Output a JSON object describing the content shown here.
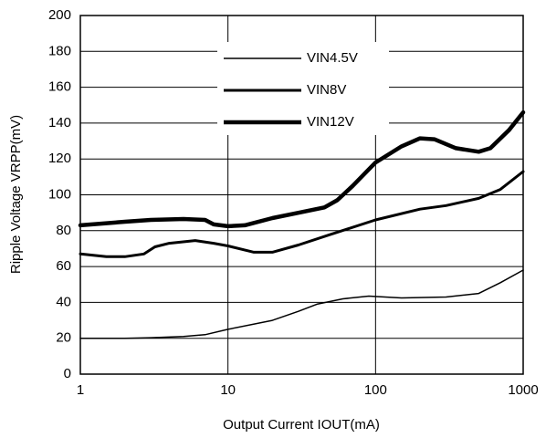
{
  "chart_data": {
    "type": "line",
    "xlabel": "Output Current IOUT(mA)",
    "ylabel": "Ripple Voltage VRPP(mV)",
    "xscale": "log",
    "xlim": [
      1,
      1000
    ],
    "xticks": [
      1,
      10,
      100,
      1000
    ],
    "ylim": [
      0,
      200
    ],
    "yticks": [
      0,
      20,
      40,
      60,
      80,
      100,
      120,
      140,
      160,
      180,
      200
    ],
    "grid": true,
    "legend": "upper center",
    "series": [
      {
        "name": "VIN4.5V",
        "color": "#000000",
        "linewidth": 1.5,
        "x": [
          1,
          2,
          3,
          5,
          7,
          10,
          20,
          30,
          40,
          60,
          90,
          150,
          300,
          500,
          700,
          1000
        ],
        "values": [
          20,
          20,
          20.3,
          21,
          22,
          25,
          30,
          35,
          39,
          42,
          43.5,
          42.5,
          43,
          45,
          51,
          58
        ]
      },
      {
        "name": "VIN8V",
        "color": "#000000",
        "linewidth": 3,
        "x": [
          1,
          1.5,
          2,
          2.7,
          3.2,
          4,
          6,
          8,
          10,
          15,
          20,
          30,
          50,
          100,
          200,
          300,
          500,
          700,
          1000
        ],
        "values": [
          67,
          65.5,
          65.5,
          67,
          71,
          73,
          74.5,
          73,
          71.5,
          68,
          68,
          72,
          78,
          86,
          92,
          94,
          98,
          103,
          113
        ]
      },
      {
        "name": "VIN12V",
        "color": "#000000",
        "linewidth": 4.5,
        "x": [
          1,
          2,
          3,
          5,
          7,
          8,
          10,
          13,
          20,
          30,
          45,
          55,
          70,
          100,
          150,
          200,
          250,
          350,
          500,
          600,
          800,
          1000
        ],
        "values": [
          83,
          85,
          86,
          86.5,
          86,
          83.5,
          82.5,
          83,
          87,
          90,
          93,
          97,
          105,
          118,
          127,
          131.5,
          131,
          126,
          124,
          126,
          136,
          146
        ]
      }
    ]
  }
}
